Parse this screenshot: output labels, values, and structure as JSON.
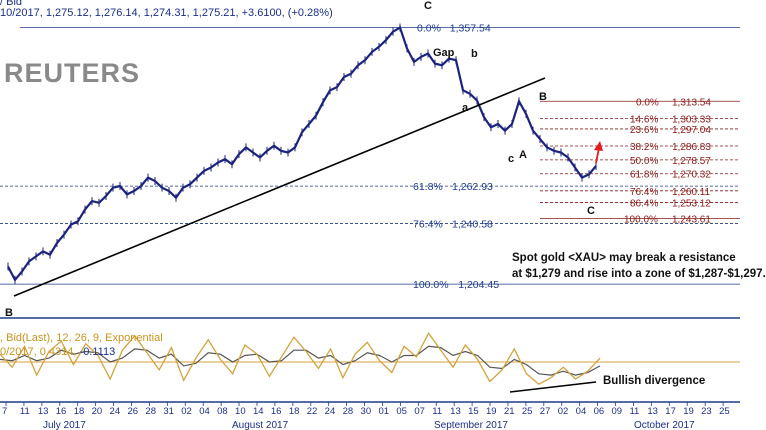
{
  "header": {
    "title_fragment": "/ Bid",
    "quote": "10/2017, 1,275.12, 1,276.14, 1,274.31, 1,275.21,",
    "change": "+3.6100, (+0.28%)"
  },
  "watermark": "REUTERS",
  "note": {
    "line1": "Spot gold <XAU> may break a resistance",
    "line2": "at $1,279 and rise into a zone of $1,287-$1,297."
  },
  "macd": {
    "label": ", Bid(Last), 12, 26, 9, Exponential",
    "values_prefix": "0/2017, 0.4314,",
    "value2": "-0.1113",
    "divergence_label": "Bullish divergence"
  },
  "colors": {
    "price": "#1a237e",
    "fib_major": "#1f3b8c",
    "fib_minor": "#8b1a1a",
    "trendline": "#000000",
    "macd_line": "#d4a23a",
    "signal_line": "#555555",
    "arrow": "#e41a1c"
  },
  "chart_data": {
    "type": "line",
    "series": [
      {
        "values": [
          [
            0,
            1215
          ],
          [
            4,
            1207
          ],
          [
            8,
            1212
          ],
          [
            12,
            1218
          ],
          [
            16,
            1221
          ],
          [
            20,
            1224
          ],
          [
            24,
            1222
          ],
          [
            28,
            1229
          ],
          [
            32,
            1234
          ],
          [
            36,
            1240
          ],
          [
            40,
            1242
          ],
          [
            44,
            1249
          ],
          [
            48,
            1254
          ],
          [
            52,
            1253
          ],
          [
            56,
            1257
          ],
          [
            60,
            1262
          ],
          [
            64,
            1263
          ],
          [
            68,
            1258
          ],
          [
            72,
            1260
          ],
          [
            76,
            1263
          ],
          [
            80,
            1268
          ],
          [
            84,
            1266
          ],
          [
            88,
            1262
          ],
          [
            92,
            1260
          ],
          [
            96,
            1256
          ],
          [
            100,
            1262
          ],
          [
            104,
            1264
          ],
          [
            108,
            1268
          ],
          [
            112,
            1272
          ],
          [
            116,
            1274
          ],
          [
            120,
            1277
          ],
          [
            124,
            1279
          ],
          [
            128,
            1276
          ],
          [
            132,
            1282
          ],
          [
            136,
            1286
          ],
          [
            140,
            1283
          ],
          [
            144,
            1280
          ],
          [
            148,
            1284
          ],
          [
            152,
            1287
          ],
          [
            156,
            1284
          ],
          [
            160,
            1283
          ],
          [
            164,
            1286
          ],
          [
            168,
            1295
          ],
          [
            172,
            1300
          ],
          [
            176,
            1305
          ],
          [
            180,
            1313
          ],
          [
            184,
            1320
          ],
          [
            188,
            1322
          ],
          [
            192,
            1328
          ],
          [
            196,
            1330
          ],
          [
            200,
            1335
          ],
          [
            204,
            1338
          ],
          [
            208,
            1343
          ],
          [
            212,
            1346
          ],
          [
            216,
            1350
          ],
          [
            220,
            1355
          ],
          [
            224,
            1357.5
          ],
          [
            228,
            1345
          ],
          [
            232,
            1337
          ],
          [
            236,
            1340
          ],
          [
            240,
            1342
          ],
          [
            244,
            1336
          ],
          [
            248,
            1335
          ],
          [
            252,
            1339
          ],
          [
            256,
            1338
          ],
          [
            260,
            1320
          ],
          [
            264,
            1318
          ],
          [
            268,
            1314
          ],
          [
            272,
            1304
          ],
          [
            276,
            1298
          ],
          [
            280,
            1300
          ],
          [
            284,
            1296
          ],
          [
            288,
            1300
          ],
          [
            292,
            1313.5
          ],
          [
            296,
            1306
          ],
          [
            300,
            1296
          ],
          [
            304,
            1291
          ],
          [
            308,
            1286
          ],
          [
            312,
            1284
          ],
          [
            316,
            1283
          ],
          [
            320,
            1280
          ],
          [
            324,
            1274
          ],
          [
            328,
            1268
          ],
          [
            332,
            1270
          ],
          [
            336,
            1275
          ]
        ]
      }
    ],
    "x_tick_labels": [
      "7",
      "11",
      "13",
      "16",
      "18",
      "20",
      "24",
      "26",
      "28",
      "31",
      "02",
      "04",
      "08",
      "10",
      "14",
      "16",
      "18",
      "22",
      "24",
      "28",
      "30",
      "01",
      "05",
      "07",
      "11",
      "13",
      "15",
      "19",
      "21",
      "25",
      "27",
      "02",
      "04",
      "06",
      "09",
      "11",
      "13",
      "17",
      "19",
      "23",
      "25"
    ],
    "month_labels": [
      "July 2017",
      "August 2017",
      "September 2017",
      "October 2017"
    ],
    "fib_levels_main": [
      {
        "label": "0.0%",
        "value": "1,357.54",
        "price": 1357.54
      },
      {
        "label": "61.8%",
        "value": "1,262.93",
        "price": 1262.93
      },
      {
        "label": "76.4%",
        "value": "1,240.58",
        "price": 1240.58
      },
      {
        "label": "100.0%",
        "value": "1,204.45",
        "price": 1204.45
      }
    ],
    "fib_levels_minor": [
      {
        "label": "0.0%",
        "value": "1,313.54",
        "price": 1313.54
      },
      {
        "label": "14.6%",
        "value": "1,303.33",
        "price": 1303.33
      },
      {
        "label": "23.6%",
        "value": "1,297.04",
        "price": 1297.04
      },
      {
        "label": "38.2%",
        "value": "1,286.83",
        "price": 1286.83
      },
      {
        "label": "50.0%",
        "value": "1,278.57",
        "price": 1278.57
      },
      {
        "label": "61.8%",
        "value": "1,270.32",
        "price": 1270.32
      },
      {
        "label": "76.4%",
        "value": "1,260.11",
        "price": 1260.11
      },
      {
        "label": "86.4%",
        "value": "1,253.12",
        "price": 1253.12
      },
      {
        "label": "100.0%",
        "value": "1,243.61",
        "price": 1243.61
      }
    ],
    "wave_labels": [
      "C",
      "Gap",
      "b",
      "a",
      "B",
      "c",
      "A",
      "C",
      "B"
    ],
    "ylim": [
      1195,
      1362
    ],
    "macd_values": [
      0.6,
      -0.4,
      1.2,
      -1.0,
      0.8,
      1.6,
      -0.2,
      1.4,
      0.5,
      -1.3,
      0.9,
      2.0,
      0.7,
      -0.6,
      1.1,
      -1.4,
      0.3,
      1.7,
      0.2,
      -0.9,
      1.3,
      0.6,
      -1.1,
      0.4,
      1.9,
      0.8,
      -0.5,
      1.0,
      -1.2,
      0.6,
      1.5,
      0.1,
      -0.8,
      1.2,
      0.4,
      2.2,
      0.9,
      -0.4,
      1.3,
      0.2,
      -1.5,
      -0.6,
      1.0,
      -0.9,
      -1.7,
      -1.2,
      -0.4,
      -1.3,
      -0.7,
      0.3
    ],
    "signal_values": [
      0.2,
      0.1,
      0.5,
      0.1,
      0.3,
      0.9,
      0.6,
      0.8,
      0.7,
      0.0,
      0.3,
      1.0,
      0.9,
      0.3,
      0.6,
      -0.3,
      -0.1,
      0.7,
      0.6,
      0.0,
      0.5,
      0.6,
      0.0,
      0.1,
      0.9,
      0.9,
      0.3,
      0.5,
      -0.2,
      0.1,
      0.7,
      0.5,
      0.0,
      0.5,
      0.5,
      1.2,
      1.1,
      0.5,
      0.8,
      0.5,
      -0.4,
      -0.5,
      0.2,
      -0.2,
      -0.9,
      -1.0,
      -0.7,
      -1.0,
      -0.8,
      -0.3
    ],
    "macd_ylim": [
      -2.6,
      2.6
    ]
  }
}
